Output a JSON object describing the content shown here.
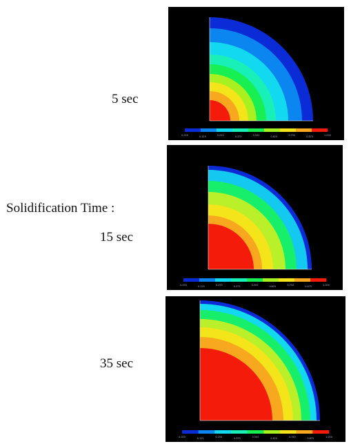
{
  "figure": {
    "heading": "Solidification Time :",
    "panels": [
      {
        "time_label": "5 sec",
        "band_colors": [
          "#0a2bd6",
          "#0b86f0",
          "#13d9f0",
          "#19f0b8",
          "#17ef53",
          "#a9f020",
          "#f4e41a",
          "#f7a81e",
          "#f41b0b"
        ],
        "colorbar_ticks": [
          "0.000",
          "0.125",
          "0.250",
          "0.375",
          "0.500",
          "0.625",
          "0.750",
          "0.875",
          "1.000"
        ]
      },
      {
        "time_label": "15 sec",
        "band_colors": [
          "#0a2bd6",
          "#13c9f0",
          "#17ef6a",
          "#b9f02a",
          "#f4e41a",
          "#f7a81e",
          "#f41b0b"
        ],
        "colorbar_ticks": [
          "0.000",
          "0.125",
          "0.250",
          "0.375",
          "0.500",
          "0.625",
          "0.750",
          "0.875",
          "1.000"
        ]
      },
      {
        "time_label": "35 sec",
        "band_colors": [
          "#0a2bd6",
          "#13d9f0",
          "#17ef6a",
          "#b9f02a",
          "#f4e41a",
          "#f7a81e",
          "#f41b0b"
        ],
        "colorbar_ticks": [
          "0.000",
          "0.125",
          "0.250",
          "0.375",
          "0.500",
          "0.625",
          "0.750",
          "0.875",
          "1.000"
        ]
      }
    ],
    "colorbar_colors": [
      "#0a2bd6",
      "#0b86f0",
      "#13d9f0",
      "#19f0b8",
      "#17ef53",
      "#a9f020",
      "#f4e41a",
      "#f7a81e",
      "#f41b0b"
    ]
  }
}
